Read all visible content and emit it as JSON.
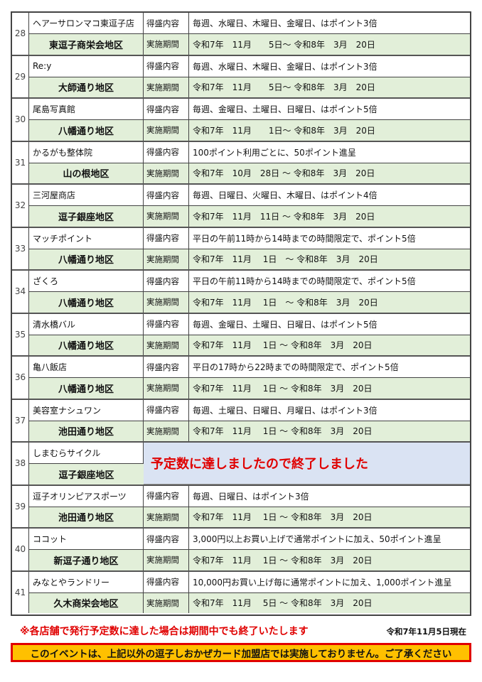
{
  "label_content": "得盛内容",
  "label_period": "実施期間",
  "stores": [
    {
      "no": "28",
      "name": "ヘアーサロンマコ東逗子店",
      "area": "東逗子商栄会地区",
      "content": "毎週、水曜日、木曜日、金曜日、はポイント3倍",
      "period": "令和7年　11月　　5日～ 令和8年　3月　20日"
    },
    {
      "no": "29",
      "name": "Re:y",
      "area": "大師通り地区",
      "content": "毎週、水曜日、木曜日、金曜日、はポイント3倍",
      "period": "令和7年　11月　　5日～ 令和8年　3月　20日"
    },
    {
      "no": "30",
      "name": "尾島写真館",
      "area": "八幡通り地区",
      "content": "毎週、金曜日、土曜日、日曜日、はポイント5倍",
      "period": "令和7年　11月　　1日～ 令和8年　3月　20日"
    },
    {
      "no": "31",
      "name": "かるがも整体院",
      "area": "山の根地区",
      "content": "100ポイント利用ごとに、50ポイント進呈",
      "period": "令和7年　10月　28日 ～ 令和8年　3月　20日"
    },
    {
      "no": "32",
      "name": "三河屋商店",
      "area": "逗子銀座地区",
      "content": "毎週、日曜日、火曜日、木曜日、はポイント4倍",
      "period": "令和7年　11月　11日 ～ 令和8年　3月　20日"
    },
    {
      "no": "33",
      "name": "マッチポイント",
      "area": "八幡通り地区",
      "content": "平日の午前11時から14時までの時間限定で、ポイント5倍",
      "period": "令和7年　11月　 1日　～ 令和8年　3月　20日"
    },
    {
      "no": "34",
      "name": "ざくろ",
      "area": "八幡通り地区",
      "content": "平日の午前11時から14時までの時間限定で、ポイント5倍",
      "period": "令和7年　11月　 1日　～ 令和8年　3月　20日"
    },
    {
      "no": "35",
      "name": "清水橋バル",
      "area": "八幡通り地区",
      "content": "毎週、金曜日、土曜日、日曜日、はポイント5倍",
      "period": "令和7年　11月　 1日 ～ 令和8年　3月　20日"
    },
    {
      "no": "36",
      "name": "亀八飯店",
      "area": "八幡通り地区",
      "content": "平日の17時から22時までの時間限定で、ポイント5倍",
      "period": "令和7年　11月　 1日 ～ 令和8年　3月　20日"
    },
    {
      "no": "37",
      "name": "美容室ナシュワン",
      "area": "池田通り地区",
      "content": "毎週、土曜日、日曜日、月曜日、はポイント3倍",
      "period": "令和7年　11月　 1日 ～ 令和8年　3月　20日"
    },
    {
      "no": "38",
      "name": "しまむらサイクル",
      "area": "逗子銀座地区",
      "ended": "予定数に達しましたので終了しました"
    },
    {
      "no": "39",
      "name": "逗子オリンピアスポーツ",
      "area": "池田通り地区",
      "content": "毎週、日曜日、はポイント3倍",
      "period": "令和7年　11月　 1日 ～ 令和8年　3月　20日"
    },
    {
      "no": "40",
      "name": "ココット",
      "area": "新逗子通り地区",
      "content": "3,000円以上お買い上げで通常ポイントに加え、50ポイント進呈",
      "period": "令和7年　11月　 1日 ～ 令和8年　3月　20日"
    },
    {
      "no": "41",
      "name": "みなとやランドリー",
      "area": "久木商栄会地区",
      "content": "10,000円お買い上げ毎に通常ポイントに加え、1,000ポイント進呈",
      "period": "令和7年　11月　 5日 ～ 令和8年　3月　20日"
    }
  ],
  "footer": {
    "note": "※各店舗で発行予定数に達した場合は期間中でも終了いたします",
    "as_of": "令和7年11月5日現在",
    "banner": "このイベントは、上記以外の逗子しおかぜカード加盟店では実施しておりません。ご了承ください"
  },
  "colors": {
    "green_row": "#e2efd9",
    "ended_bg": "#dae3f3",
    "red": "#e00000",
    "banner_bg": "#ffc000"
  }
}
